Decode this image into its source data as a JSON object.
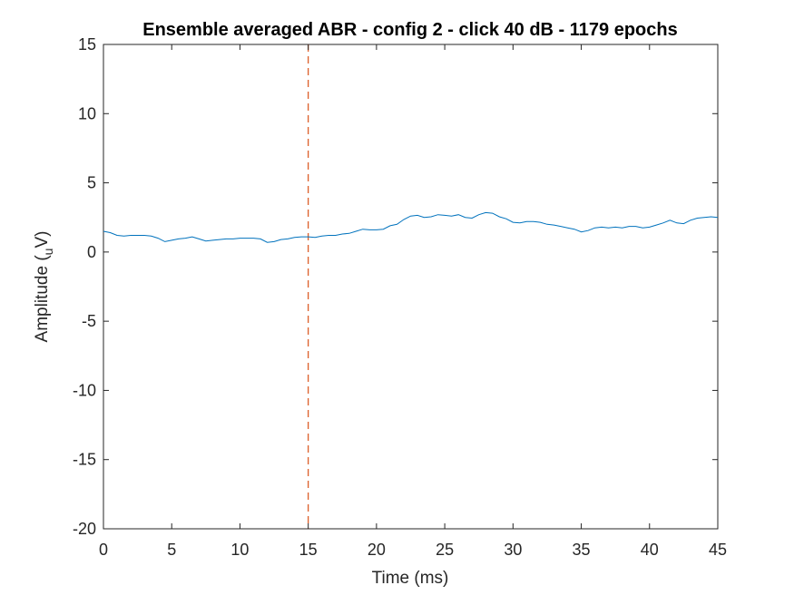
{
  "chart_data": {
    "type": "line",
    "title": "Ensemble averaged ABR - config 2 - click 40 dB - 1179 epochs",
    "xlabel": "Time (ms)",
    "ylabel": "Amplitude (uV)",
    "ylabel_parts": {
      "prefix": "Amplitude (",
      "sub": "u",
      "suffix": "V)"
    },
    "xlim": [
      0,
      45
    ],
    "ylim": [
      -20,
      15
    ],
    "xticks": [
      0,
      5,
      10,
      15,
      20,
      25,
      30,
      35,
      40,
      45
    ],
    "yticks": [
      -20,
      -15,
      -10,
      -5,
      0,
      5,
      10,
      15
    ],
    "grid": false,
    "colors": {
      "series": "#0072BD",
      "marker_line": "#D95319"
    },
    "vline": {
      "x": 15,
      "style": "dashed"
    },
    "series": [
      {
        "x": [
          0,
          0.5,
          1,
          1.5,
          2,
          2.5,
          3,
          3.5,
          4,
          4.5,
          5,
          5.5,
          6,
          6.5,
          7,
          7.5,
          8,
          8.5,
          9,
          9.5,
          10,
          10.5,
          11,
          11.5,
          12,
          12.5,
          13,
          13.5,
          14,
          14.5,
          15,
          15.5,
          16,
          16.5,
          17,
          17.5,
          18,
          18.5,
          19,
          19.5,
          20,
          20.5,
          21,
          21.5,
          22,
          22.5,
          23,
          23.5,
          24,
          24.5,
          25,
          25.5,
          26,
          26.5,
          27,
          27.5,
          28,
          28.5,
          29,
          29.5,
          30,
          30.5,
          31,
          31.5,
          32,
          32.5,
          33,
          33.5,
          34,
          34.5,
          35,
          35.5,
          36,
          36.5,
          37,
          37.5,
          38,
          38.5,
          39,
          39.5,
          40,
          40.5,
          41,
          41.5,
          42,
          42.5,
          43,
          43.5,
          44,
          44.5,
          45
        ],
        "y": [
          1.5,
          1.4,
          1.2,
          1.15,
          1.2,
          1.2,
          1.2,
          1.15,
          1.0,
          0.75,
          0.85,
          0.95,
          1.0,
          1.1,
          0.95,
          0.8,
          0.85,
          0.9,
          0.95,
          0.95,
          1.0,
          1.0,
          1.0,
          0.95,
          0.7,
          0.75,
          0.9,
          0.95,
          1.05,
          1.1,
          1.1,
          1.05,
          1.15,
          1.2,
          1.2,
          1.3,
          1.35,
          1.5,
          1.65,
          1.6,
          1.6,
          1.65,
          1.9,
          2.0,
          2.35,
          2.6,
          2.65,
          2.5,
          2.55,
          2.7,
          2.65,
          2.6,
          2.7,
          2.5,
          2.45,
          2.7,
          2.85,
          2.8,
          2.55,
          2.4,
          2.15,
          2.1,
          2.2,
          2.2,
          2.15,
          2.0,
          1.95,
          1.85,
          1.75,
          1.65,
          1.45,
          1.55,
          1.75,
          1.8,
          1.75,
          1.8,
          1.75,
          1.85,
          1.85,
          1.75,
          1.8,
          1.95,
          2.1,
          2.3,
          2.1,
          2.05,
          2.3,
          2.45,
          2.5,
          2.55,
          2.5
        ]
      }
    ]
  }
}
